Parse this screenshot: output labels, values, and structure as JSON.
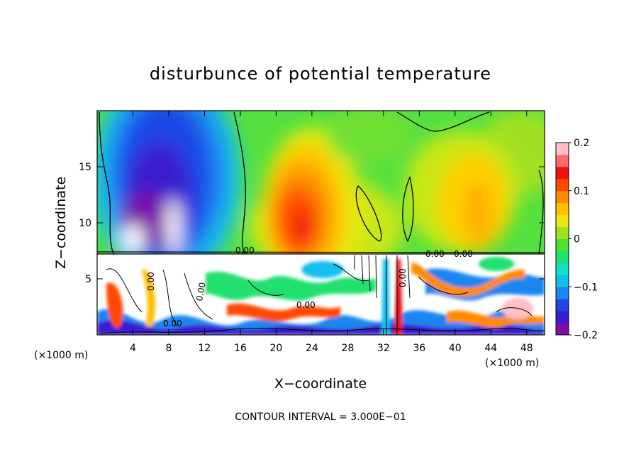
{
  "chart_data": {
    "type": "heatmap",
    "title": "disturbunce of potential temperature",
    "xlabel": "X−coordinate",
    "ylabel": "Z−coordinate",
    "x_unit": "(×1000 m)",
    "x_unit_right": "(×1000 m)",
    "xlim": [
      0,
      50
    ],
    "ylim": [
      0,
      20
    ],
    "x_ticks": [
      4,
      8,
      12,
      16,
      20,
      24,
      28,
      32,
      36,
      40,
      44,
      48
    ],
    "x_tick_labels": [
      "4",
      "8",
      "12",
      "16",
      "20",
      "24",
      "28",
      "32",
      "36",
      "40",
      "44",
      "48"
    ],
    "y_ticks": [
      5,
      10,
      15
    ],
    "y_tick_labels": [
      "5",
      "10",
      "15"
    ],
    "colorbar": {
      "range": [
        -0.2,
        0.2
      ],
      "ticks": [
        0.2,
        0.1,
        0,
        -0.1,
        -0.2
      ],
      "tick_labels": [
        "0.2",
        "0.1",
        "0",
        "−0.1",
        "−0.2"
      ],
      "colors": [
        "#7b0fa8",
        "#3a1ccf",
        "#1e46e6",
        "#1a86f0",
        "#12c0ee",
        "#10e0c8",
        "#20e070",
        "#50e030",
        "#a0e020",
        "#e8e810",
        "#ffc000",
        "#ff8a00",
        "#ff4a00",
        "#f01010",
        "#ff6a6a",
        "#ffc0c8"
      ]
    },
    "contour_labels": [
      "0.00",
      "0.00",
      "0.00",
      "0.00",
      "0.00",
      "0.00",
      "0.00",
      "0.00"
    ],
    "contour_interval_text": "CONTOUR INTERVAL = 3.000E−01",
    "field_regions": [
      {
        "name": "upper-left cold core",
        "x": 8,
        "z": 14,
        "value": -0.19
      },
      {
        "name": "upper warm core",
        "x": 23,
        "z": 10,
        "value": 0.15
      },
      {
        "name": "upper-right warm core",
        "x": 43,
        "z": 13,
        "value": 0.1
      }
    ]
  }
}
